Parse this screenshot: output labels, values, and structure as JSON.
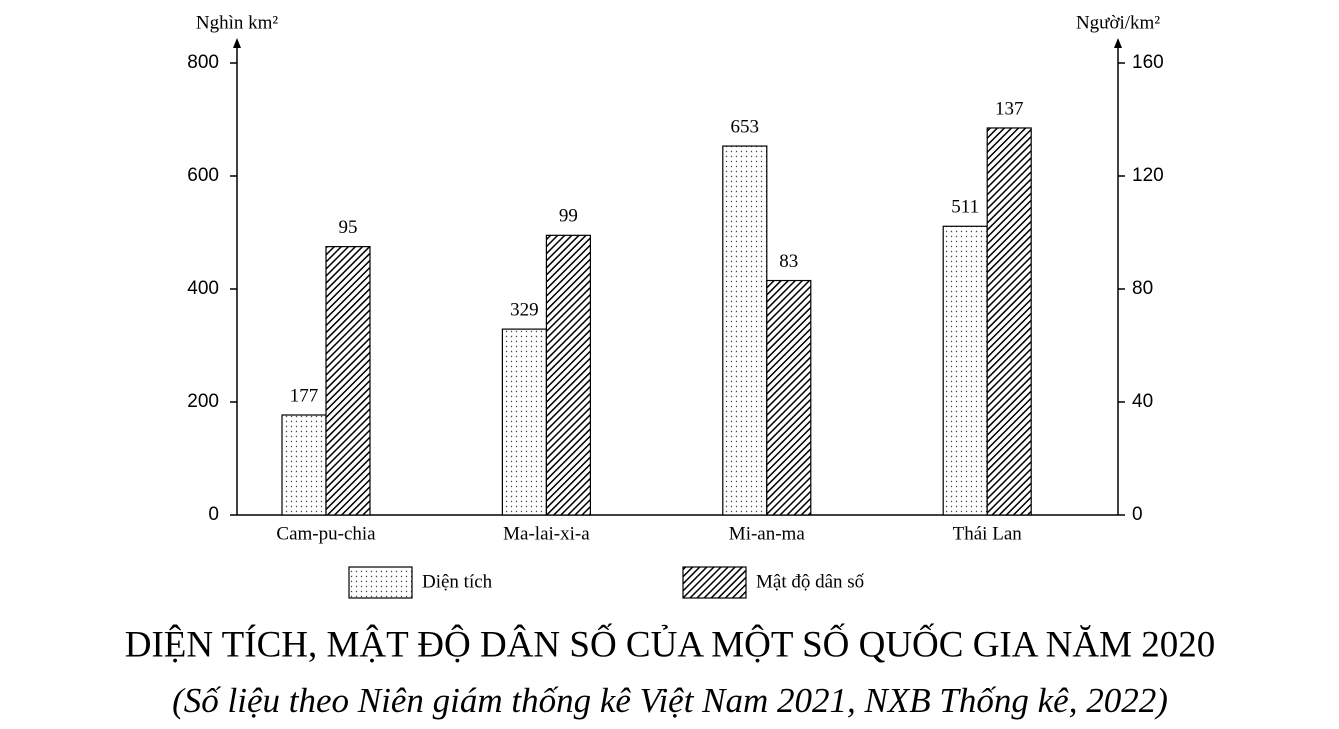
{
  "chart_data": {
    "type": "bar",
    "title": "DIỆN TÍCH, MẬT ĐỘ DÂN SỐ CỦA MỘT SỐ QUỐC GIA NĂM 2020",
    "subtitle": "(Số liệu theo Niên giám thống kê Việt Nam 2021, NXB Thống kê, 2022)",
    "y_label": "Nghìn km²",
    "y2_label": "Người/km²",
    "categories": [
      "Cam-pu-chia",
      "Ma-lai-xi-a",
      "Mi-an-ma",
      "Thái Lan"
    ],
    "series": [
      {
        "name": "Diện tích",
        "color": "#ffffff",
        "pattern": "dots",
        "values": [
          177,
          329,
          653,
          511
        ]
      },
      {
        "name": "Mật độ dân số",
        "color": "#ffffff",
        "pattern": "hatch",
        "axis": "y2",
        "values": [
          95,
          99,
          83,
          137
        ]
      }
    ],
    "ylim": [
      0,
      800
    ],
    "yticks": [
      0,
      200,
      400,
      600,
      800
    ],
    "y2lim": [
      0,
      160
    ],
    "y2ticks": [
      0,
      40,
      80,
      120,
      160
    ],
    "grid": false
  }
}
